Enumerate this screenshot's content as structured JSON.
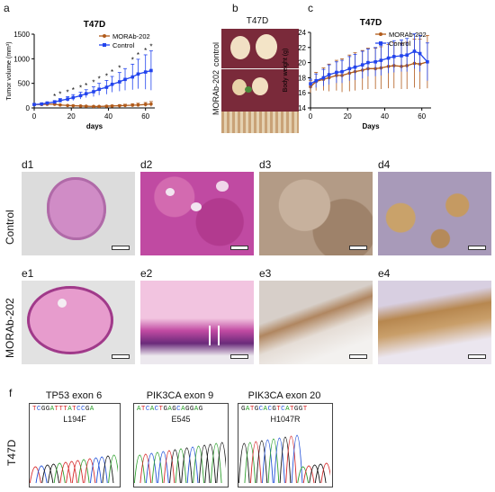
{
  "panels": {
    "a": "a",
    "b": "b",
    "c": "c",
    "d1": "d1",
    "d2": "d2",
    "d3": "d3",
    "d4": "d4",
    "e1": "e1",
    "e2": "e2",
    "e3": "e3",
    "e4": "e4",
    "f": "f"
  },
  "row_labels": {
    "control": "Control",
    "morab": "MORAb-202",
    "t47d": "T47D"
  },
  "photo_b": {
    "title": "T47D",
    "label_control": "control",
    "label_treated": "MORAb-202"
  },
  "chart_data": [
    {
      "type": "line",
      "title": "T47D",
      "xlabel": "days",
      "ylabel": "Tumor volume (mm³)",
      "xlim": [
        0,
        65
      ],
      "ylim": [
        0,
        1500
      ],
      "xticks": [
        0,
        20,
        40,
        60
      ],
      "yticks": [
        0,
        500,
        1000,
        1500
      ],
      "legend_position": "top-right",
      "series": [
        {
          "name": "MORAb-202",
          "color": "#b05a1a",
          "x": [
            0,
            4,
            7,
            11,
            14,
            18,
            21,
            25,
            28,
            32,
            35,
            39,
            42,
            46,
            49,
            53,
            56,
            60,
            63
          ],
          "y": [
            70,
            70,
            75,
            75,
            60,
            50,
            45,
            40,
            35,
            30,
            30,
            35,
            40,
            45,
            50,
            55,
            60,
            70,
            80
          ],
          "err": [
            10,
            10,
            10,
            10,
            10,
            10,
            10,
            10,
            10,
            10,
            10,
            12,
            15,
            20,
            25,
            30,
            35,
            40,
            50
          ]
        },
        {
          "name": "Control",
          "color": "#2244ee",
          "x": [
            0,
            4,
            7,
            11,
            14,
            18,
            21,
            25,
            28,
            32,
            35,
            39,
            42,
            46,
            49,
            53,
            56,
            60,
            63
          ],
          "y": [
            70,
            80,
            100,
            120,
            150,
            180,
            210,
            250,
            290,
            330,
            380,
            420,
            480,
            530,
            580,
            630,
            690,
            730,
            760
          ],
          "err": [
            10,
            15,
            20,
            30,
            40,
            50,
            60,
            70,
            80,
            100,
            120,
            140,
            160,
            190,
            220,
            260,
            300,
            350,
            400
          ]
        }
      ],
      "significance": {
        "marker": "*",
        "x": [
          11,
          14,
          18,
          21,
          25,
          28,
          32,
          35,
          39,
          42,
          46,
          53,
          56,
          60,
          63
        ]
      }
    },
    {
      "type": "line",
      "title": "T47D",
      "xlabel": "Days",
      "ylabel": "Body weight (g)",
      "xlim": [
        0,
        65
      ],
      "ylim": [
        14,
        24
      ],
      "xticks": [
        0,
        20,
        40,
        60
      ],
      "yticks": [
        14,
        16,
        18,
        20,
        22,
        24
      ],
      "legend_position": "top-right",
      "series": [
        {
          "name": "MORAb-202",
          "color": "#b05a1a",
          "x": [
            0,
            3,
            7,
            10,
            14,
            17,
            21,
            24,
            28,
            31,
            35,
            38,
            42,
            45,
            49,
            52,
            56,
            59,
            63
          ],
          "y": [
            16.8,
            17.5,
            17.8,
            18.0,
            18.3,
            18.3,
            18.6,
            18.8,
            19.0,
            19.2,
            19.2,
            19.3,
            19.5,
            19.6,
            19.5,
            19.6,
            19.9,
            19.8,
            20.1
          ],
          "err": [
            0.8,
            1.2,
            1.5,
            1.8,
            2.0,
            2.2,
            2.4,
            2.5,
            2.6,
            2.7,
            2.7,
            2.8,
            2.9,
            3.0,
            3.0,
            3.1,
            3.2,
            3.3,
            3.5
          ]
        },
        {
          "name": "Control",
          "color": "#2244ee",
          "x": [
            0,
            3,
            7,
            10,
            14,
            17,
            21,
            24,
            28,
            31,
            35,
            38,
            42,
            45,
            49,
            52,
            56,
            59,
            63
          ],
          "y": [
            17.2,
            17.6,
            18.0,
            18.4,
            18.7,
            18.8,
            19.2,
            19.4,
            19.7,
            20.0,
            20.1,
            20.3,
            20.6,
            20.8,
            20.9,
            21.0,
            21.5,
            21.2,
            20.1
          ],
          "err": [
            0.6,
            0.9,
            1.1,
            1.3,
            1.4,
            1.5,
            1.6,
            1.7,
            1.8,
            1.8,
            1.9,
            2.0,
            2.0,
            2.1,
            2.1,
            2.2,
            2.3,
            2.4,
            2.5
          ]
        }
      ]
    }
  ],
  "histology": {
    "d": [
      {
        "id": "d1",
        "stain": "he_low",
        "bg": "#dcdcdc"
      },
      {
        "id": "d2",
        "stain": "he_high",
        "bg": "#c83aa0"
      },
      {
        "id": "d3",
        "stain": "ihc_low",
        "bg": "#b7a08c"
      },
      {
        "id": "d4",
        "stain": "ihc_high",
        "bg": "#a69ab8"
      }
    ],
    "e": [
      {
        "id": "e1",
        "stain": "he_low",
        "bg": "#e0e0e0"
      },
      {
        "id": "e2",
        "stain": "he_high",
        "bg": "#e9aacd"
      },
      {
        "id": "e3",
        "stain": "ihc_low",
        "bg": "#e6e0dc"
      },
      {
        "id": "e4",
        "stain": "ihc_high",
        "bg": "#e4dde8"
      }
    ]
  },
  "sequencing": [
    {
      "gene": "TP53 exon 6",
      "sequence": "TCGGATTTATCCGA",
      "mutation": "L194F"
    },
    {
      "gene": "PIK3CA exon 9",
      "sequence": "ATCACTGAGCAGGAG",
      "mutation": "E545"
    },
    {
      "gene": "PIK3CA exon 20",
      "sequence": "GATGCACGTCATGGT",
      "mutation": "H1047R"
    }
  ],
  "trace_colors": {
    "A": "#2ca02c",
    "C": "#1f4fd8",
    "G": "#111111",
    "T": "#d62728"
  }
}
